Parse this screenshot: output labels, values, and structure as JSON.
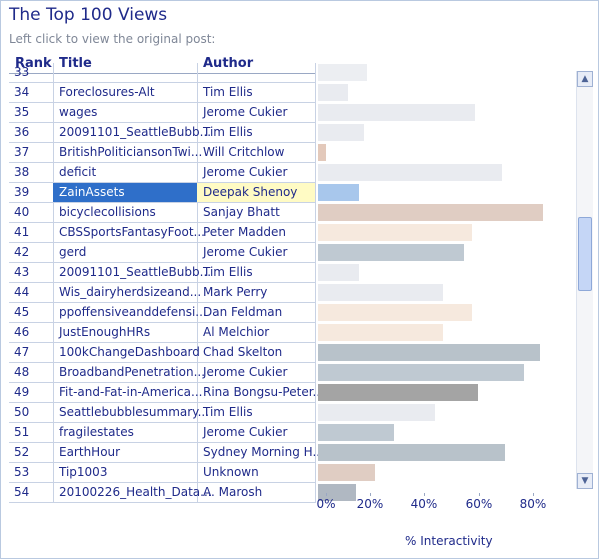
{
  "page": {
    "title": "The Top 100 Views",
    "subtitle": "Left click to view the original post:"
  },
  "columns": {
    "rank": "Rank",
    "title": "Title",
    "author": "Author"
  },
  "rows": [
    {
      "rank": "33",
      "title": "",
      "author": "",
      "value": 18,
      "color": "#eceef2"
    },
    {
      "rank": "34",
      "title": "Foreclosures-Alt",
      "author": "Tim Ellis",
      "value": 11,
      "color": "#e9ebf0"
    },
    {
      "rank": "35",
      "title": "wages",
      "author": "Jerome Cukier",
      "value": 58,
      "color": "#e9ebf0"
    },
    {
      "rank": "36",
      "title": "20091101_SeattleBubb...",
      "author": "Tim Ellis",
      "value": 17,
      "color": "#e9ebf0"
    },
    {
      "rank": "37",
      "title": "BritishPoliticiansonTwi...",
      "author": "Will Critchlow",
      "value": 3,
      "color": "#e3c9bb"
    },
    {
      "rank": "38",
      "title": "deficit",
      "author": "Jerome Cukier",
      "value": 68,
      "color": "#e9ebf0"
    },
    {
      "rank": "39",
      "title": "ZainAssets",
      "author": "Deepak Shenoy",
      "value": 15,
      "color": "#a8c7ec",
      "selected": true
    },
    {
      "rank": "40",
      "title": "bicyclecollisions",
      "author": "Sanjay Bhatt",
      "value": 83,
      "color": "#e0cdc3"
    },
    {
      "rank": "41",
      "title": "CBSSportsFantasyFoot...",
      "author": "Peter Madden",
      "value": 57,
      "color": "#f6e9de"
    },
    {
      "rank": "42",
      "title": "gerd",
      "author": "Jerome Cukier",
      "value": 54,
      "color": "#bfc9d2"
    },
    {
      "rank": "43",
      "title": "20091101_SeattleBubb...",
      "author": "Tim Ellis",
      "value": 15,
      "color": "#e9ebf0"
    },
    {
      "rank": "44",
      "title": "Wis_dairyherdsizeand...",
      "author": "Mark Perry",
      "value": 46,
      "color": "#e9ebf0"
    },
    {
      "rank": "45",
      "title": "ppoffensiveanddefensi...",
      "author": "Dan Feldman",
      "value": 57,
      "color": "#f6e9de"
    },
    {
      "rank": "46",
      "title": "JustEnoughHRs",
      "author": "Al Melchior",
      "value": 46,
      "color": "#f6e9de"
    },
    {
      "rank": "47",
      "title": "100kChangeDashboard",
      "author": "Chad Skelton",
      "value": 82,
      "color": "#b8c2ca"
    },
    {
      "rank": "48",
      "title": "BroadbandPenetration...",
      "author": "Jerome Cukier",
      "value": 76,
      "color": "#bfc9d2"
    },
    {
      "rank": "49",
      "title": "Fit-and-Fat-in-America...",
      "author": "Rina Bongsu-Peter...",
      "value": 59,
      "color": "#a4a4a4"
    },
    {
      "rank": "50",
      "title": "Seattlebubblesummary...",
      "author": "Tim Ellis",
      "value": 43,
      "color": "#e9ebf0"
    },
    {
      "rank": "51",
      "title": "fragilestates",
      "author": "Jerome Cukier",
      "value": 28,
      "color": "#bfc9d2"
    },
    {
      "rank": "52",
      "title": "EarthHour",
      "author": "Sydney Morning H...",
      "value": 69,
      "color": "#b8c2ca"
    },
    {
      "rank": "53",
      "title": "Tip1003",
      "author": "Unknown",
      "value": 21,
      "color": "#e0cdc3"
    },
    {
      "rank": "54",
      "title": "20100226_Health_Data...",
      "author": "A. Marosh",
      "value": 14,
      "color": "#b0b8c2"
    }
  ],
  "axis": {
    "ticks": [
      "0%",
      "20%",
      "40%",
      "60%",
      "80%"
    ],
    "label": "% Interactivity"
  },
  "scrollbar": {
    "up_icon": "triangle-up",
    "down_icon": "triangle-down"
  }
}
